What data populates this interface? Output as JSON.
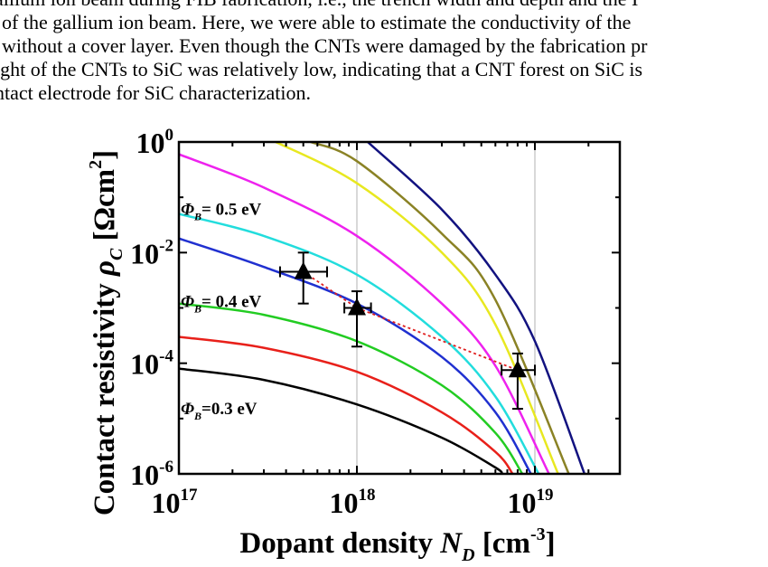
{
  "paper": {
    "lines": [
      "allium ion beam during FIB fabrication, i.e., the trench width and depth and the I",
      "of the gallium ion beam. Here, we were able to estimate the conductivity of the",
      "without a cover layer. Even though the CNTs were damaged by the fabrication pr",
      "ight of the CNTs to SiC was relatively low, indicating that a CNT forest on SiC is",
      "ntact electrode for SiC characterization."
    ]
  },
  "chart_data": {
    "type": "line",
    "xlabel": {
      "main": "Dopant density ",
      "sym": "N",
      "sub": "D",
      "unit_open": " [cm",
      "sup": "-3",
      "unit_close": "]"
    },
    "ylabel": {
      "main": "Contact resistivity ",
      "sym": "ρ",
      "sub": "C",
      "unit_open": " [Ωcm",
      "sup": "2",
      "unit_close": "]"
    },
    "x_scale": "log",
    "y_scale": "log",
    "xlim": [
      1e+17,
      3e+19
    ],
    "ylim": [
      1e-06,
      1
    ],
    "x_ticks": [
      {
        "value": 1e+17,
        "base": "10",
        "exp": "17"
      },
      {
        "value": 1e+18,
        "base": "10",
        "exp": "18"
      },
      {
        "value": 1e+19,
        "base": "10",
        "exp": "19"
      }
    ],
    "y_ticks": [
      {
        "value": 1,
        "base": "10",
        "exp": "0"
      },
      {
        "value": 0.01,
        "base": "10",
        "exp": "-2"
      },
      {
        "value": 0.0001,
        "base": "10",
        "exp": "-4"
      },
      {
        "value": 1e-06,
        "base": "10",
        "exp": "-6"
      }
    ],
    "grid": "vertical lines at 1e18 and 1e19",
    "series": [
      {
        "color": "#000000",
        "x": [
          1e+17,
          3e+17,
          1e+18,
          3e+18,
          6e+18,
          6.5e+18
        ],
        "y": [
          8e-05,
          5e-05,
          1.8e-05,
          4.5e-06,
          1.3e-06,
          1e-06
        ]
      },
      {
        "color": "#e8201a",
        "x": [
          1e+17,
          3e+17,
          1e+18,
          3e+18,
          6e+18,
          7.5e+18
        ],
        "y": [
          0.0003,
          0.00019,
          7e-05,
          1.3e-05,
          2.5e-06,
          1e-06
        ]
      },
      {
        "color": "#22cc22",
        "x": [
          1e+17,
          3e+17,
          1e+18,
          3e+18,
          6e+18,
          8.5e+18
        ],
        "y": [
          0.0012,
          0.00075,
          0.00025,
          4e-05,
          5.5e-06,
          1e-06
        ]
      },
      {
        "color": "#2030d0",
        "x": [
          1e+17,
          3e+17,
          1e+18,
          3e+18,
          6e+18,
          9.5e+18
        ],
        "y": [
          0.018,
          0.0055,
          0.0012,
          0.00013,
          1.3e-05,
          1e-06
        ]
      },
      {
        "color": "#22dddd",
        "x": [
          1e+17,
          3e+17,
          1e+18,
          3e+18,
          6e+18,
          1.05e+19
        ],
        "y": [
          0.05,
          0.02,
          0.004,
          0.0003,
          2.5e-05,
          1e-06
        ]
      },
      {
        "color": "#ee22ee",
        "x": [
          1e+17,
          3e+17,
          1e+18,
          3e+18,
          6e+18,
          1.2e+19
        ],
        "y": [
          0.6,
          0.15,
          0.02,
          0.0012,
          9e-05,
          1e-06
        ]
      },
      {
        "color": "#e8e820",
        "x": [
          3.5e+17,
          1e+18,
          3e+18,
          6e+18,
          1.35e+19
        ],
        "y": [
          1,
          0.18,
          0.01,
          0.0005,
          1e-06
        ]
      },
      {
        "color": "#8a8225",
        "x": [
          5.5e+17,
          1e+18,
          3e+18,
          6e+18,
          1.55e+19
        ],
        "y": [
          1,
          0.45,
          0.022,
          0.0014,
          1e-06
        ]
      },
      {
        "color": "#121280",
        "x": [
          1.15e+18,
          3e+18,
          6e+18,
          1e+19,
          1.9e+19
        ],
        "y": [
          1,
          0.06,
          0.004,
          0.00025,
          1e-06
        ]
      }
    ],
    "measurements": [
      {
        "x": 5e+17,
        "y": 0.0045,
        "xerr": [
          3.7e+17,
          6.8e+17
        ],
        "yerr": [
          0.0012,
          0.01
        ]
      },
      {
        "x": 1e+18,
        "y": 0.001,
        "xerr": [
          8.5e+17,
          1.2e+18
        ],
        "yerr": [
          0.0002,
          0.002
        ]
      },
      {
        "x": 8e+18,
        "y": 7.5e-05,
        "xerr": [
          6.5e+18,
          1e+19
        ],
        "yerr": [
          1.5e-05,
          0.00015
        ]
      }
    ],
    "fit_line_color": "#e02020",
    "annotations": [
      {
        "symbol": "Φ",
        "sub": "B",
        "text": "= 0.5 eV",
        "x": 1e+17,
        "y": 0.06
      },
      {
        "symbol": "Φ",
        "sub": "B",
        "text": "= 0.4 eV",
        "x": 1e+17,
        "y": 0.0013
      },
      {
        "symbol": "Φ",
        "sub": "B",
        "text": "=0.3 eV",
        "x": 1e+17,
        "y": 1.5e-05
      }
    ]
  }
}
